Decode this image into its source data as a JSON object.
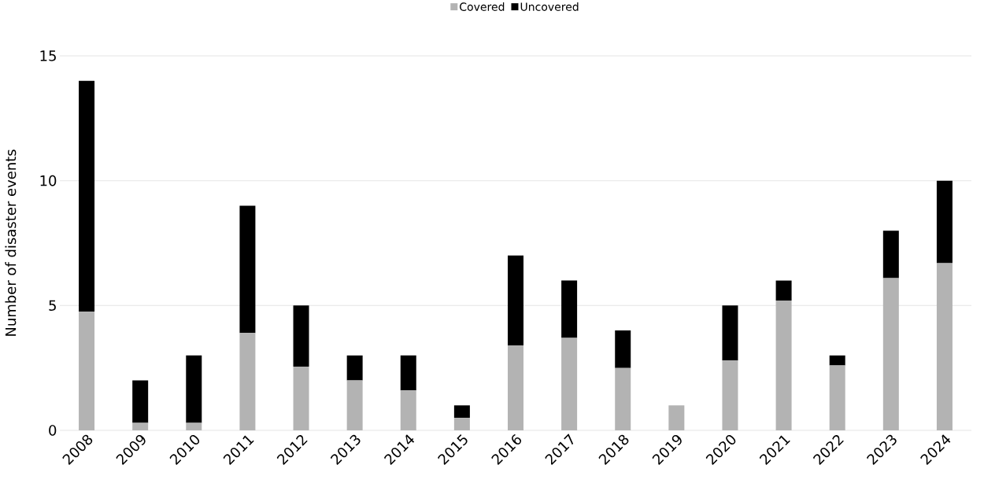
{
  "chart_data": {
    "type": "bar",
    "stacked": true,
    "ylabel": "Number of disaster events",
    "categories": [
      "2008",
      "2009",
      "2010",
      "2011",
      "2012",
      "2013",
      "2014",
      "2015",
      "2016",
      "2017",
      "2018",
      "2019",
      "2020",
      "2021",
      "2022",
      "2023",
      "2024"
    ],
    "series": [
      {
        "name": "Covered",
        "color": "#b3b3b3",
        "values": [
          4.75,
          0.3,
          0.3,
          3.9,
          2.55,
          2,
          1.6,
          0.5,
          3.4,
          3.7,
          2.5,
          1,
          2.8,
          5.2,
          2.6,
          6.1,
          6.7
        ]
      },
      {
        "name": "Uncovered",
        "color": "#000000",
        "values": [
          9.25,
          1.7,
          2.7,
          5.1,
          2.45,
          1,
          1.4,
          0.5,
          3.6,
          2.3,
          1.5,
          0,
          2.2,
          0.8,
          0.4,
          1.9,
          3.3
        ]
      }
    ],
    "ylim": [
      0,
      15
    ],
    "yticks": [
      0,
      5,
      10,
      15
    ],
    "grid": "y",
    "legend": "top"
  }
}
